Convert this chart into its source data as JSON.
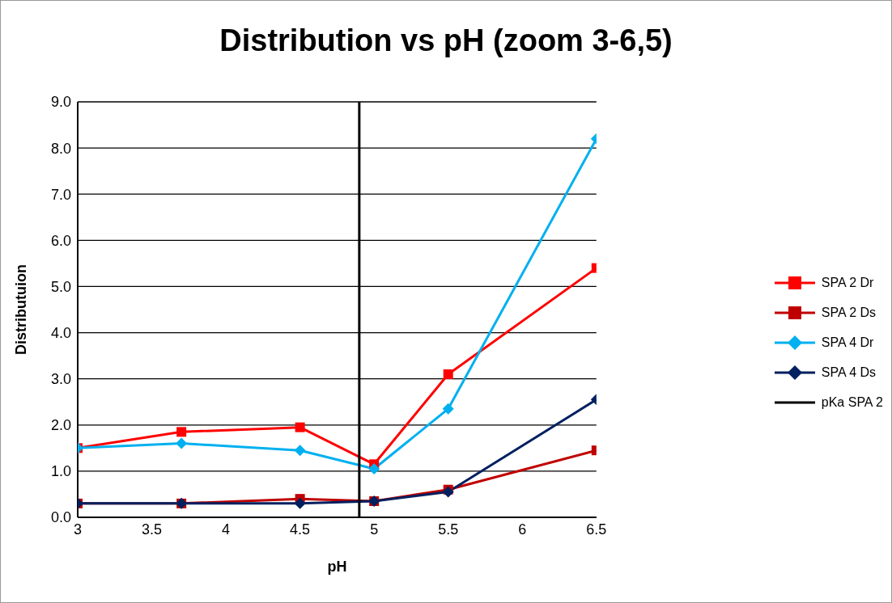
{
  "chart_data": {
    "type": "line",
    "title": "Distribution vs pH (zoom 3-6,5)",
    "xlabel": "pH",
    "ylabel": "Distributuion",
    "xlim": [
      3,
      6.5
    ],
    "xticks": [
      3,
      3.5,
      4,
      4.5,
      5,
      5.5,
      6,
      6.5
    ],
    "ylim": [
      0,
      9
    ],
    "yticks": [
      {
        "value": 0,
        "label": "0.0"
      },
      {
        "value": 1,
        "label": "1.0"
      },
      {
        "value": 2,
        "label": "2.0"
      },
      {
        "value": 3,
        "label": "3.0"
      },
      {
        "value": 4,
        "label": "4.0"
      },
      {
        "value": 5,
        "label": "5.0"
      },
      {
        "value": 6,
        "label": "6.0"
      },
      {
        "value": 7,
        "label": "7.0"
      },
      {
        "value": 8,
        "label": "8.0"
      },
      {
        "value": 9,
        "label": "9.0"
      }
    ],
    "grid": "y",
    "legend": "right",
    "series": [
      {
        "name": "SPA 2 Dr",
        "color": "#ff0000",
        "marker": "square",
        "x": [
          3,
          3.7,
          4.5,
          5,
          5.5,
          6.5
        ],
        "values": [
          1.5,
          1.85,
          1.95,
          1.15,
          3.1,
          5.4
        ]
      },
      {
        "name": "SPA 2 Ds",
        "color": "#c00000",
        "marker": "square",
        "x": [
          3,
          3.7,
          4.5,
          5,
          5.5,
          6.5
        ],
        "values": [
          0.3,
          0.3,
          0.4,
          0.35,
          0.6,
          1.45
        ]
      },
      {
        "name": "SPA 4 Dr",
        "color": "#00b0f0",
        "marker": "diamond",
        "x": [
          3,
          3.7,
          4.5,
          5,
          5.5,
          6.5
        ],
        "values": [
          1.5,
          1.6,
          1.45,
          1.05,
          2.35,
          8.2
        ]
      },
      {
        "name": "SPA 4 Ds",
        "color": "#002060",
        "marker": "diamond",
        "x": [
          3,
          3.7,
          4.5,
          5,
          5.5,
          6.5
        ],
        "values": [
          0.3,
          0.3,
          0.3,
          0.35,
          0.55,
          2.55
        ]
      },
      {
        "name": "pKa SPA 2",
        "color": "#000000",
        "marker": "none",
        "x": [
          4.9,
          4.9
        ],
        "values": [
          0,
          9
        ]
      }
    ]
  }
}
